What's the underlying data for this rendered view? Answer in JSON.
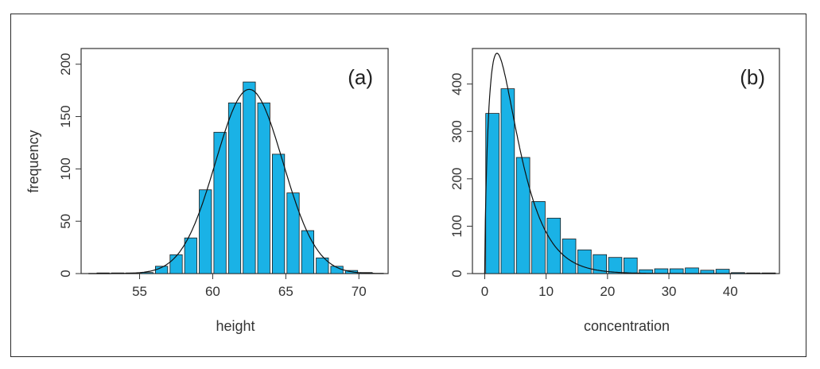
{
  "colors": {
    "bar": "#1ab2e6",
    "bar_edge": "#1a1a1a",
    "curve": "#111111",
    "axis": "#333333"
  },
  "chart_data": [
    {
      "type": "bar",
      "panel_label": "(a)",
      "title": "",
      "xlabel": "height",
      "ylabel": "frequency",
      "xlim": [
        51,
        72
      ],
      "ylim": [
        0,
        215
      ],
      "xticks": [
        55,
        60,
        65,
        70
      ],
      "yticks": [
        0,
        50,
        100,
        150,
        200
      ],
      "bin_width": 1,
      "bin_centers": [
        52.5,
        53.5,
        54.5,
        55.5,
        56.5,
        57.5,
        58.5,
        59.5,
        60.5,
        61.5,
        62.5,
        63.5,
        64.5,
        65.5,
        66.5,
        67.5,
        68.5,
        69.5,
        70.5
      ],
      "values": [
        0,
        0,
        0,
        1,
        7,
        18,
        34,
        80,
        135,
        163,
        183,
        163,
        114,
        77,
        41,
        15,
        7,
        3,
        1
      ],
      "curve": {
        "name": "normal density fit",
        "mean": 62.5,
        "sd": 2.3,
        "peak": 176
      }
    },
    {
      "type": "bar",
      "panel_label": "(b)",
      "title": "",
      "xlabel": "concentration",
      "ylabel": "",
      "xlim": [
        -2,
        48
      ],
      "ylim": [
        0,
        475
      ],
      "xticks": [
        0,
        10,
        20,
        30,
        40
      ],
      "yticks": [
        0,
        100,
        200,
        300,
        400
      ],
      "bin_width": 2.5,
      "bin_centers": [
        1.25,
        3.75,
        6.25,
        8.75,
        11.25,
        13.75,
        16.25,
        18.75,
        21.25,
        23.75,
        26.25,
        28.75,
        31.25,
        33.75,
        36.25,
        38.75,
        41.25,
        43.75,
        46.25
      ],
      "values": [
        338,
        390,
        245,
        152,
        117,
        73,
        50,
        40,
        34,
        33,
        8,
        10,
        10,
        12,
        7,
        9,
        2,
        1,
        0
      ],
      "curve": {
        "name": "skewed density fit",
        "mode": 2.0,
        "peak": 465
      }
    }
  ]
}
